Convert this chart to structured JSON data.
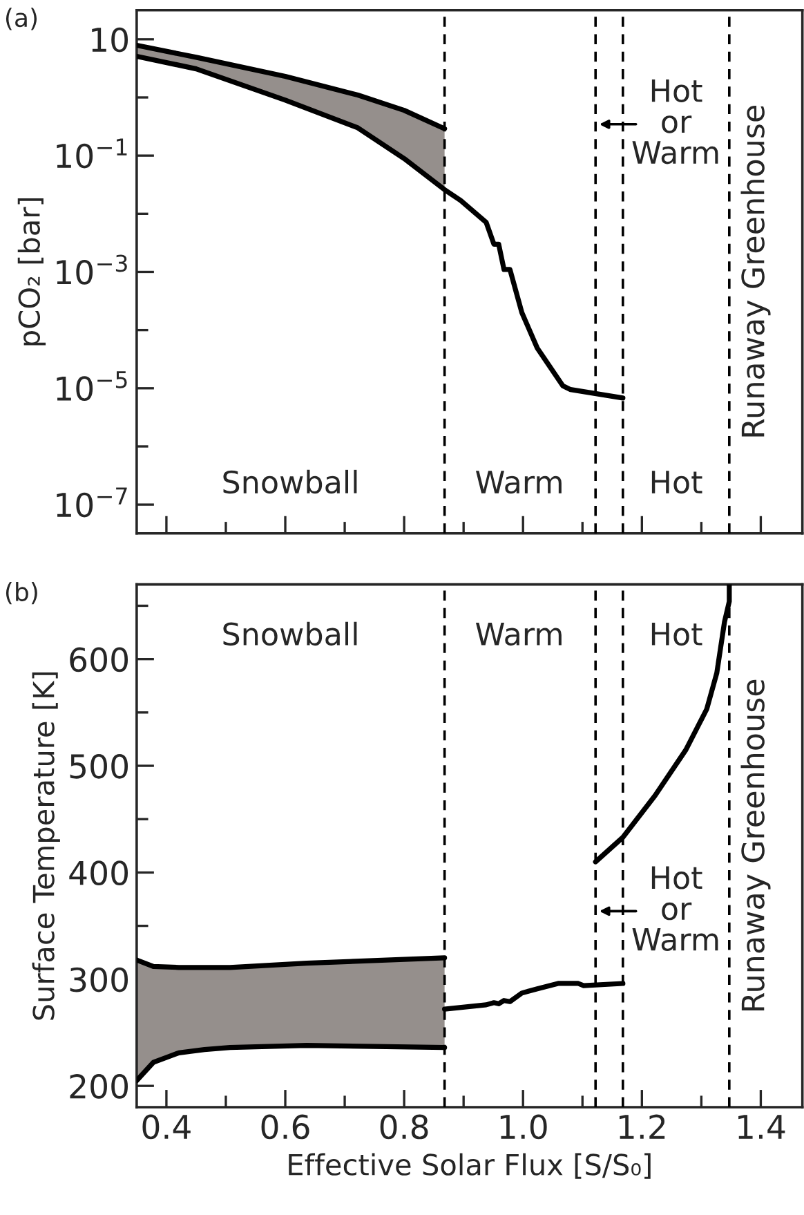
{
  "chart_data": [
    {
      "type": "line",
      "title": "(a)",
      "ylabel": "pCO₂ [bar]",
      "log": "y",
      "tick_labels": "y",
      "grid": false,
      "legend": false,
      "xlim": [
        0.35,
        1.47
      ],
      "ylim": [
        3.2e-08,
        31.6
      ],
      "xticks": [
        0.4,
        {
          "value": 0.5,
          "label": null
        },
        0.6,
        {
          "value": 0.7,
          "label": null
        },
        0.8,
        {
          "value": 0.9,
          "label": null
        },
        1.0,
        {
          "value": 1.1,
          "label": null
        },
        1.2,
        {
          "value": 1.3,
          "label": null
        },
        1.4
      ],
      "yticks": [
        {
          "value": 1e-07,
          "label": "10$^{−7}$"
        },
        {
          "value": 1e-06,
          "label": null
        },
        {
          "value": 1e-05,
          "label": "10$^{−5}$"
        },
        {
          "value": 0.0001,
          "label": null
        },
        {
          "value": 0.001,
          "label": "10$^{−3}$"
        },
        {
          "value": 0.01,
          "label": null
        },
        {
          "value": 0.1,
          "label": "10$^{−1}$"
        },
        {
          "value": 1,
          "label": null
        },
        10
      ],
      "series": [
        {
          "color": "#000000",
          "x": [
            0.35,
            0.45,
            0.6,
            0.722,
            0.8,
            0.868
          ],
          "values": [
            7.9,
            4.9,
            2.3,
            1.1,
            0.6,
            0.29
          ],
          "lower": [
            5.1,
            3.1,
            0.9,
            0.3,
            0.089,
            0.026
          ],
          "upper": [
            7.9,
            4.9,
            2.3,
            1.1,
            0.6,
            0.29
          ]
        },
        {
          "color": "#000000",
          "x": [
            0.35,
            0.45,
            0.6,
            0.722,
            0.8,
            0.868,
            0.895,
            0.938,
            0.951,
            0.959,
            0.968,
            0.978,
            0.998,
            1.024,
            1.067,
            1.08,
            1.168
          ],
          "values": [
            5.1,
            3.1,
            0.9,
            0.3,
            0.089,
            0.026,
            0.017,
            0.0071,
            0.003,
            0.003,
            0.0011,
            0.0011,
            0.0002,
            4.9e-05,
            1.1e-05,
            9.5e-06,
            6.8e-06
          ]
        }
      ],
      "ref_lines": [
        {
          "axis": "x",
          "value": 0.868,
          "line_style": "dashed"
        },
        {
          "axis": "x",
          "value": 1.122,
          "line_style": "dashed"
        },
        {
          "axis": "x",
          "value": 1.168,
          "line_style": "dashed"
        },
        {
          "axis": "x",
          "value": 1.347,
          "line_style": "dashed",
          "label": "Runaway Greenhouse"
        }
      ],
      "annotations": [
        "Snowball",
        "Warm",
        "Hot",
        "Hot\nor\nWarm"
      ]
    },
    {
      "type": "line",
      "title": "(b)",
      "xlabel": "Effective Solar Flux [S/S₀]",
      "ylabel": "Surface Temperature [K]",
      "grid": false,
      "legend": false,
      "xlim": [
        0.35,
        1.47
      ],
      "ylim": [
        180,
        670
      ],
      "xticks": [
        0.4,
        {
          "value": 0.5,
          "label": null
        },
        0.6,
        {
          "value": 0.7,
          "label": null
        },
        0.8,
        {
          "value": 0.9,
          "label": null
        },
        {
          "value": 1.0,
          "label": "1.0"
        },
        {
          "value": 1.1,
          "label": null
        },
        1.2,
        {
          "value": 1.3,
          "label": null
        },
        1.4
      ],
      "yticks": [
        200,
        {
          "value": 250,
          "label": null
        },
        300,
        {
          "value": 350,
          "label": null
        },
        400,
        {
          "value": 450,
          "label": null
        },
        500,
        {
          "value": 550,
          "label": null
        },
        600,
        {
          "value": 650,
          "label": null
        }
      ],
      "series": [
        {
          "color": "#000000",
          "x": [
            0.35,
            0.378,
            0.421,
            0.464,
            0.507,
            0.636,
            0.868
          ],
          "values": [
            318,
            312,
            311,
            311,
            311,
            315,
            320
          ],
          "lower": [
            205,
            222,
            231,
            234,
            236,
            238,
            236
          ],
          "upper": [
            318,
            312,
            311,
            311,
            311,
            315,
            320
          ]
        },
        {
          "color": "#000000",
          "x": [
            0.35,
            0.378,
            0.421,
            0.464,
            0.507,
            0.636,
            0.868
          ],
          "values": [
            205,
            222,
            231,
            234,
            236,
            238,
            236
          ]
        },
        {
          "color": "#000000",
          "x": [
            0.868,
            0.938,
            0.951,
            0.959,
            0.968,
            0.978,
            0.998,
            1.024,
            1.059,
            1.093,
            1.102,
            1.168
          ],
          "values": [
            272,
            276,
            278,
            277,
            280,
            279,
            287,
            291,
            296,
            296,
            294,
            296
          ]
        },
        {
          "color": "#000000",
          "x": [
            1.122,
            1.168,
            1.222,
            1.274,
            1.309,
            1.326,
            1.339,
            1.347,
            1.347
          ],
          "values": [
            410,
            433,
            472,
            515,
            553,
            587,
            635,
            654,
            670
          ]
        }
      ],
      "ref_lines": [
        {
          "axis": "x",
          "value": 0.868,
          "line_style": "dashed"
        },
        {
          "axis": "x",
          "value": 1.122,
          "line_style": "dashed"
        },
        {
          "axis": "x",
          "value": 1.168,
          "line_style": "dashed"
        },
        {
          "axis": "x",
          "value": 1.347,
          "line_style": "dashed",
          "label": "Runaway Greenhouse"
        }
      ],
      "annotations": [
        "Snowball",
        "Warm",
        "Hot",
        "Hot\nor\nWarm"
      ]
    }
  ]
}
